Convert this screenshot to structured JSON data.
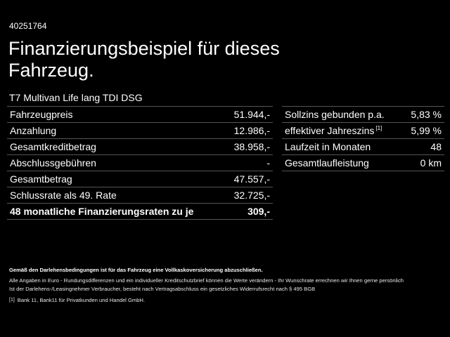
{
  "reference_id": "40251764",
  "title": "Finanzierungsbeispiel für dieses Fahrzeug.",
  "model": "T7 Multivan Life lang TDI DSG",
  "left_table": [
    {
      "label": "Fahrzeugpreis",
      "value": "51.944,-"
    },
    {
      "label": "Anzahlung",
      "value": "12.986,-"
    },
    {
      "label": "Gesamtkreditbetrag",
      "value": "38.958,-"
    },
    {
      "label": "Abschlussgebühren",
      "value": "-"
    },
    {
      "label": "Gesamtbetrag",
      "value": "47.557,-"
    },
    {
      "label": "Schlussrate als 49. Rate",
      "value": "32.725,-"
    },
    {
      "label": "48 monatliche Finanzierungsraten zu je",
      "value": "309,-",
      "bold": true
    }
  ],
  "right_table": [
    {
      "label": "Sollzins gebunden p.a.",
      "value": "5,83 %"
    },
    {
      "label": "effektiver Jahreszins",
      "footnote": "[1]",
      "value": "5,99 %"
    },
    {
      "label": "Laufzeit in Monaten",
      "value": "48"
    },
    {
      "label": "Gesamtlaufleistung",
      "value": "0 km"
    }
  ],
  "notes": {
    "insurance": "Gemäß den Darlehensbedingungen ist für das Fahrzeug eine Vollkaskoversicherung abzuschließen.",
    "line1": "Alle Angaben in Euro - Rundungsdifferenzen und ein individueller Kreditschutzbrief können die Werte verändern - Ihr Wunschrate errechnen wir Ihnen gerne persönlich",
    "line2": "Ist der Darlehens-/Leasingnehmer Verbraucher, besteht nach Vertragsabschluss ein gesetzliches Widerrufsrecht nach § 495 BGB",
    "footnote_mark": "[1]",
    "footnote_text": "Bank 11, Bank11 für Privatkunden und Handel GmbH."
  }
}
